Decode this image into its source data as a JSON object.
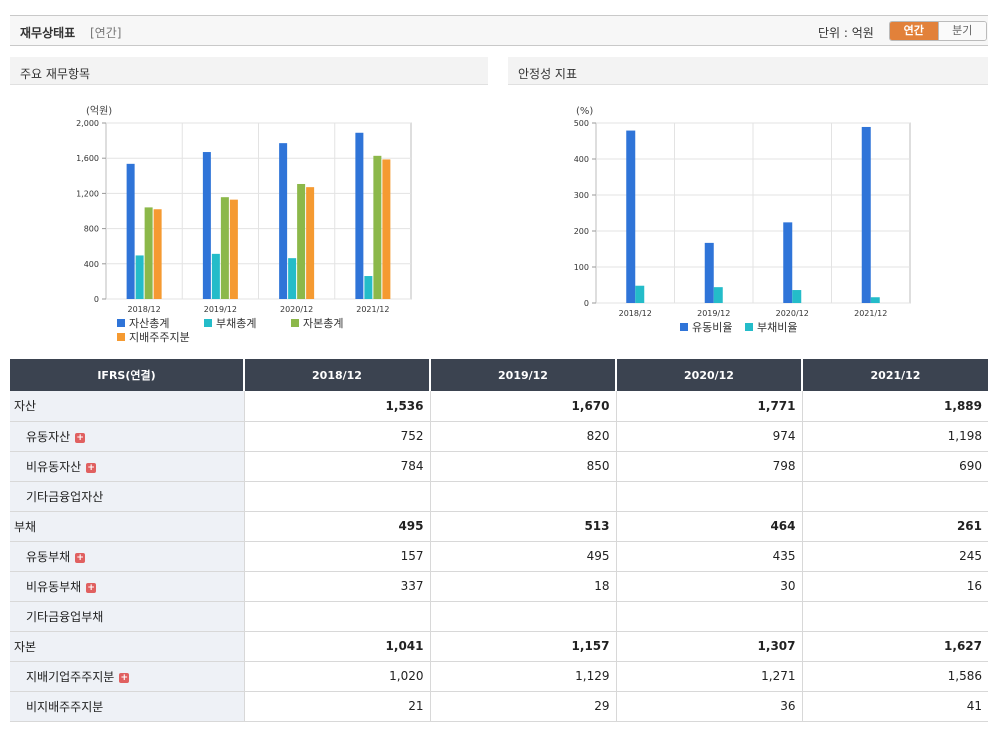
{
  "header": {
    "title": "재무상태표",
    "subtitle": "[연간]",
    "unit_label": "단위 : 억원",
    "toggle": {
      "annual": "연간",
      "quarter": "분기",
      "selected": "연간"
    }
  },
  "left_panel": {
    "title": "주요 재무항목"
  },
  "right_panel": {
    "title": "안정성 지표"
  },
  "chart_data": [
    {
      "type": "bar",
      "title": "주요 재무항목",
      "unit": "(억원)",
      "categories": [
        "2018/12",
        "2019/12",
        "2020/12",
        "2021/12"
      ],
      "ylim": [
        0,
        2000
      ],
      "yticks": [
        "0",
        "400",
        "800",
        "1,200",
        "1,600",
        "2,000"
      ],
      "grid": true,
      "series": [
        {
          "name": "자산총계",
          "color": "#2f74d8",
          "values": [
            1536,
            1670,
            1771,
            1889
          ]
        },
        {
          "name": "부채총계",
          "color": "#24bcc9",
          "values": [
            495,
            513,
            464,
            261
          ]
        },
        {
          "name": "자본총계",
          "color": "#8cb84a",
          "values": [
            1041,
            1157,
            1307,
            1627
          ]
        },
        {
          "name": "지배주주지분",
          "color": "#f59a31",
          "values": [
            1020,
            1129,
            1271,
            1586
          ]
        }
      ]
    },
    {
      "type": "bar",
      "title": "안정성 지표",
      "unit": "(%)",
      "categories": [
        "2018/12",
        "2019/12",
        "2020/12",
        "2021/12"
      ],
      "ylim": [
        0,
        500
      ],
      "yticks": [
        "0",
        "100",
        "200",
        "300",
        "400",
        "500"
      ],
      "grid": true,
      "series": [
        {
          "name": "유동비율",
          "color": "#2f74d8",
          "values": [
            479,
            167,
            224,
            489
          ]
        },
        {
          "name": "부채비율",
          "color": "#24bcc9",
          "values": [
            48,
            44,
            36,
            16
          ]
        }
      ]
    }
  ],
  "table": {
    "header": [
      "IFRS(연결)",
      "2018/12",
      "2019/12",
      "2020/12",
      "2021/12"
    ],
    "rows": [
      {
        "label": "자산",
        "main": true,
        "plus": false,
        "values": [
          "1,536",
          "1,670",
          "1,771",
          "1,889"
        ]
      },
      {
        "label": "유동자산",
        "main": false,
        "plus": true,
        "values": [
          "752",
          "820",
          "974",
          "1,198"
        ]
      },
      {
        "label": "비유동자산",
        "main": false,
        "plus": true,
        "values": [
          "784",
          "850",
          "798",
          "690"
        ]
      },
      {
        "label": "기타금융업자산",
        "main": false,
        "plus": false,
        "values": [
          "",
          "",
          "",
          ""
        ]
      },
      {
        "label": "부채",
        "main": true,
        "plus": false,
        "values": [
          "495",
          "513",
          "464",
          "261"
        ]
      },
      {
        "label": "유동부채",
        "main": false,
        "plus": true,
        "values": [
          "157",
          "495",
          "435",
          "245"
        ]
      },
      {
        "label": "비유동부채",
        "main": false,
        "plus": true,
        "values": [
          "337",
          "18",
          "30",
          "16"
        ]
      },
      {
        "label": "기타금융업부채",
        "main": false,
        "plus": false,
        "values": [
          "",
          "",
          "",
          ""
        ]
      },
      {
        "label": "자본",
        "main": true,
        "plus": false,
        "values": [
          "1,041",
          "1,157",
          "1,307",
          "1,627"
        ]
      },
      {
        "label": "지배기업주주지분",
        "main": false,
        "plus": true,
        "values": [
          "1,020",
          "1,129",
          "1,271",
          "1,586"
        ]
      },
      {
        "label": "비지배주주지분",
        "main": false,
        "plus": false,
        "values": [
          "21",
          "29",
          "36",
          "41"
        ]
      }
    ]
  }
}
